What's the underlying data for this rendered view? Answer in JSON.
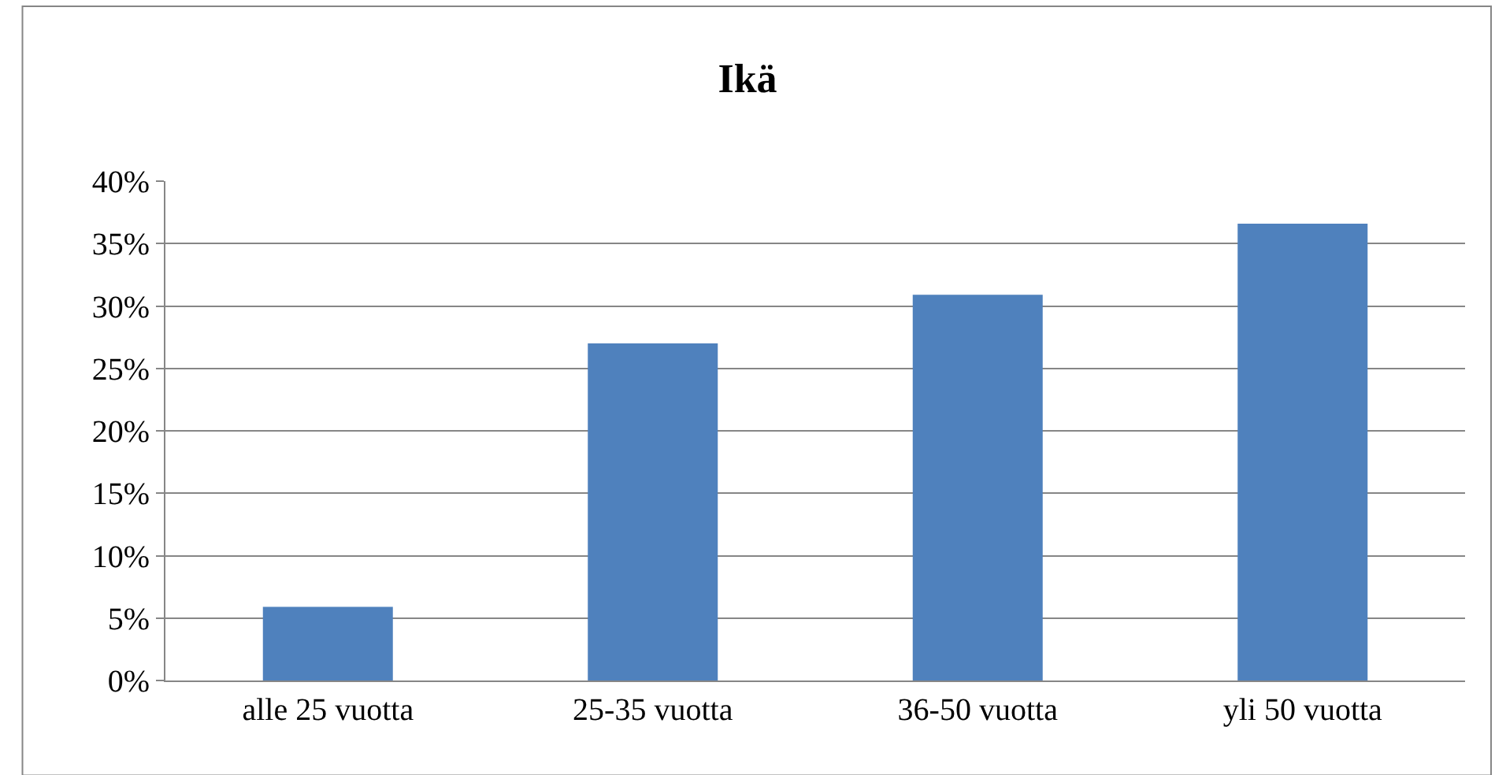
{
  "chart_data": {
    "type": "bar",
    "title": "Ikä",
    "categories": [
      "alle 25 vuotta",
      "25-35 vuotta",
      "36-50 vuotta",
      "yli 50 vuotta"
    ],
    "values": [
      5.9,
      27.0,
      30.9,
      36.6
    ],
    "color": "#4f81bd",
    "ylim": [
      0,
      40
    ],
    "yticks": [
      {
        "value": 0,
        "label": "0%"
      },
      {
        "value": 5,
        "label": "5%"
      },
      {
        "value": 10,
        "label": "10%"
      },
      {
        "value": 15,
        "label": "15%"
      },
      {
        "value": 20,
        "label": "20%"
      },
      {
        "value": 25,
        "label": "25%"
      },
      {
        "value": 30,
        "label": "30%"
      },
      {
        "value": 35,
        "label": "35%"
      },
      {
        "value": 40,
        "label": "40%"
      }
    ],
    "grid": "y"
  }
}
